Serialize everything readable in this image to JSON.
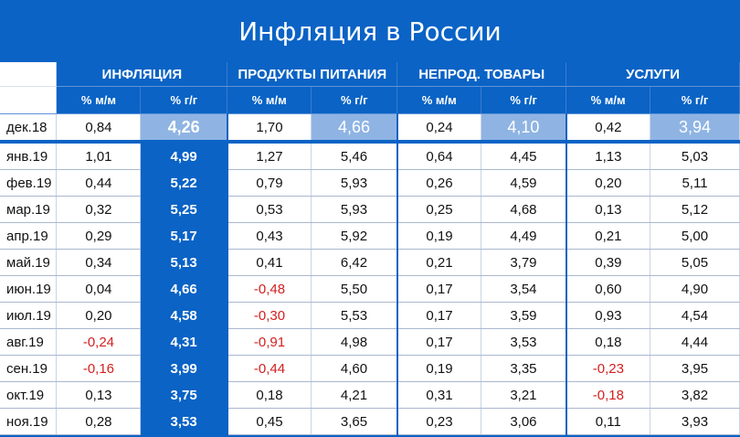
{
  "title": "Инфляция в России",
  "groups": [
    "ИНФЛЯЦИЯ",
    "ПРОДУКТЫ ПИТАНИЯ",
    "НЕПРОД. ТОВАРЫ",
    "УСЛУГИ"
  ],
  "subheaders": [
    "% м/м",
    "% г/г",
    "% м/м",
    "% г/г",
    "% м/м",
    "% г/г",
    "% м/м",
    "% г/г"
  ],
  "rows": [
    {
      "label": "дек.18",
      "values": [
        "0,84",
        "4,26",
        "1,70",
        "4,66",
        "0,24",
        "4,10",
        "0,42",
        "3,94"
      ]
    },
    {
      "label": "янв.19",
      "values": [
        "1,01",
        "4,99",
        "1,27",
        "5,46",
        "0,64",
        "4,45",
        "1,13",
        "5,03"
      ]
    },
    {
      "label": "фев.19",
      "values": [
        "0,44",
        "5,22",
        "0,79",
        "5,93",
        "0,26",
        "4,59",
        "0,20",
        "5,11"
      ]
    },
    {
      "label": "мар.19",
      "values": [
        "0,32",
        "5,25",
        "0,53",
        "5,93",
        "0,25",
        "4,68",
        "0,13",
        "5,12"
      ]
    },
    {
      "label": "апр.19",
      "values": [
        "0,29",
        "5,17",
        "0,43",
        "5,92",
        "0,19",
        "4,49",
        "0,21",
        "5,00"
      ]
    },
    {
      "label": "май.19",
      "values": [
        "0,34",
        "5,13",
        "0,41",
        "6,42",
        "0,21",
        "3,79",
        "0,39",
        "5,05"
      ]
    },
    {
      "label": "июн.19",
      "values": [
        "0,04",
        "4,66",
        "-0,48",
        "5,50",
        "0,17",
        "3,54",
        "0,60",
        "4,90"
      ]
    },
    {
      "label": "июл.19",
      "values": [
        "0,20",
        "4,58",
        "-0,30",
        "5,53",
        "0,17",
        "3,59",
        "0,93",
        "4,54"
      ]
    },
    {
      "label": "авг.19",
      "values": [
        "-0,24",
        "4,31",
        "-0,91",
        "4,98",
        "0,17",
        "3,53",
        "0,18",
        "4,44"
      ]
    },
    {
      "label": "сен.19",
      "values": [
        "-0,16",
        "3,99",
        "-0,44",
        "4,60",
        "0,19",
        "3,35",
        "-0,23",
        "3,95"
      ]
    },
    {
      "label": "окт.19",
      "values": [
        "0,13",
        "3,75",
        "0,18",
        "4,21",
        "0,31",
        "3,21",
        "-0,18",
        "3,82"
      ]
    },
    {
      "label": "ноя.19",
      "values": [
        "0,28",
        "3,53",
        "0,45",
        "3,65",
        "0,23",
        "3,06",
        "0,11",
        "3,93"
      ]
    }
  ],
  "colors": {
    "brand_blue": "#0a63c5",
    "highlight": "#8fb4e3",
    "negative": "#d21f1f"
  }
}
